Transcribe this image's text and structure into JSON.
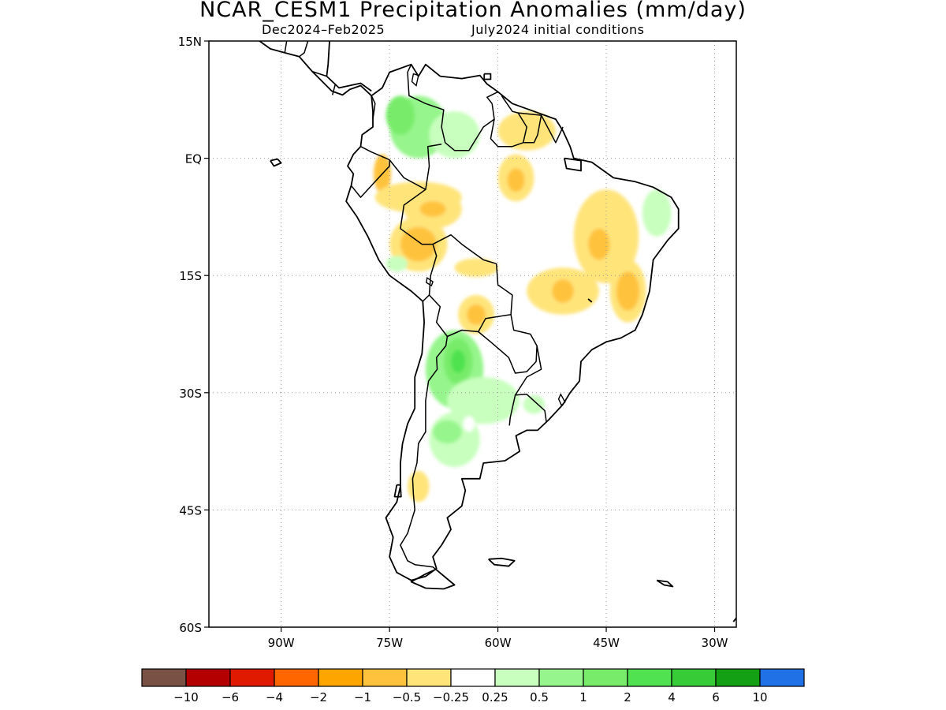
{
  "header": {
    "title": "NCAR_CESM1 Precipitation Anomalies (mm/day)",
    "subtitle_left": "Dec2024–Feb2025",
    "subtitle_right": "July2024 initial conditions"
  },
  "map": {
    "lon_range": [
      -100,
      -27
    ],
    "lat_range": [
      -60,
      15
    ],
    "lat_ticks": [
      {
        "value": 15,
        "label": "15N"
      },
      {
        "value": 0,
        "label": "EQ"
      },
      {
        "value": -15,
        "label": "15S"
      },
      {
        "value": -30,
        "label": "30S"
      },
      {
        "value": -45,
        "label": "45S"
      },
      {
        "value": -60,
        "label": "60S"
      }
    ],
    "lon_ticks": [
      {
        "value": -90,
        "label": "90W"
      },
      {
        "value": -75,
        "label": "75W"
      },
      {
        "value": -60,
        "label": "60W"
      },
      {
        "value": -45,
        "label": "45W"
      },
      {
        "value": -30,
        "label": "30W"
      }
    ],
    "grid": "dotted"
  },
  "colorbar": {
    "colors": [
      "#7a5145",
      "#b40000",
      "#e01a00",
      "#ff6600",
      "#ffa500",
      "#ffc23d",
      "#ffe47a",
      "#ffffff",
      "#c8ffbe",
      "#96f58c",
      "#78ec6a",
      "#50e250",
      "#37cc37",
      "#14a014",
      "#2171e6"
    ],
    "labels": [
      "−10",
      "−6",
      "−4",
      "−2",
      "−1",
      "−0.5",
      "−0.25",
      "0.25",
      "0.5",
      "1",
      "2",
      "4",
      "6",
      "10"
    ]
  },
  "anomalies": [
    {
      "lon": -71,
      "lat": 4,
      "rx": 4,
      "ry": 4,
      "color": "#96f58c"
    },
    {
      "lon": -73.5,
      "lat": 5.5,
      "rx": 2,
      "ry": 2.5,
      "color": "#78ec6a"
    },
    {
      "lon": -66,
      "lat": 3,
      "rx": 3.5,
      "ry": 3,
      "color": "#c8ffbe"
    },
    {
      "lon": -76,
      "lat": -2,
      "rx": 1.2,
      "ry": 2.5,
      "color": "#ffc23d"
    },
    {
      "lon": -71,
      "lat": -5,
      "rx": 6,
      "ry": 2,
      "color": "#ffe47a"
    },
    {
      "lon": -69,
      "lat": -6.5,
      "rx": 4,
      "ry": 2.5,
      "color": "#ffe47a"
    },
    {
      "lon": -69,
      "lat": -6.5,
      "rx": 1.8,
      "ry": 1,
      "color": "#ffc23d"
    },
    {
      "lon": -71,
      "lat": -11,
      "rx": 4,
      "ry": 3.5,
      "color": "#ffe47a"
    },
    {
      "lon": -71,
      "lat": -11,
      "rx": 2.5,
      "ry": 2.2,
      "color": "#ffc23d"
    },
    {
      "lon": -74,
      "lat": -13.5,
      "rx": 1.5,
      "ry": 1,
      "color": "#c8ffbe"
    },
    {
      "lon": -57.5,
      "lat": -2.5,
      "rx": 2.5,
      "ry": 3,
      "color": "#ffe47a"
    },
    {
      "lon": -57.5,
      "lat": -2.8,
      "rx": 1.2,
      "ry": 1.5,
      "color": "#ffc23d"
    },
    {
      "lon": -56,
      "lat": 3.5,
      "rx": 4,
      "ry": 2.5,
      "color": "#ffe47a"
    },
    {
      "lon": -45,
      "lat": -10,
      "rx": 4.5,
      "ry": 6,
      "color": "#ffe47a"
    },
    {
      "lon": -46,
      "lat": -11,
      "rx": 1.5,
      "ry": 2,
      "color": "#ffc23d"
    },
    {
      "lon": -51,
      "lat": -17,
      "rx": 5,
      "ry": 3,
      "color": "#ffe47a"
    },
    {
      "lon": -51,
      "lat": -17,
      "rx": 1.5,
      "ry": 1.5,
      "color": "#ffc23d"
    },
    {
      "lon": -42,
      "lat": -17,
      "rx": 2.5,
      "ry": 4,
      "color": "#ffe47a"
    },
    {
      "lon": -42,
      "lat": -17,
      "rx": 1.6,
      "ry": 2.5,
      "color": "#ffc23d"
    },
    {
      "lon": -38,
      "lat": -7,
      "rx": 2,
      "ry": 3,
      "color": "#c8ffbe"
    },
    {
      "lon": -63,
      "lat": -20,
      "rx": 2.5,
      "ry": 2.5,
      "color": "#ffe47a"
    },
    {
      "lon": -63,
      "lat": -20,
      "rx": 1.3,
      "ry": 1.3,
      "color": "#ffc23d"
    },
    {
      "lon": -63,
      "lat": -14,
      "rx": 3,
      "ry": 1.2,
      "color": "#ffe47a"
    },
    {
      "lon": -66,
      "lat": -27,
      "rx": 4,
      "ry": 5,
      "color": "#96f58c"
    },
    {
      "lon": -65.5,
      "lat": -26,
      "rx": 2,
      "ry": 3,
      "color": "#78ec6a"
    },
    {
      "lon": -65.5,
      "lat": -26,
      "rx": 1,
      "ry": 1.5,
      "color": "#50e250"
    },
    {
      "lon": -62,
      "lat": -31,
      "rx": 5,
      "ry": 3,
      "color": "#c8ffbe"
    },
    {
      "lon": -66,
      "lat": -36,
      "rx": 3.5,
      "ry": 3.5,
      "color": "#c8ffbe"
    },
    {
      "lon": -67,
      "lat": -35,
      "rx": 2,
      "ry": 1.5,
      "color": "#96f58c"
    },
    {
      "lon": -55,
      "lat": -31.5,
      "rx": 1.5,
      "ry": 1.2,
      "color": "#c8ffbe"
    },
    {
      "lon": -71,
      "lat": -42,
      "rx": 1.5,
      "ry": 2,
      "color": "#ffe47a"
    },
    {
      "lon": -64,
      "lat": -34,
      "rx": 0.8,
      "ry": 1,
      "color": "#ffffff"
    }
  ],
  "coastlines": {
    "south_america": [
      [
        -77.5,
        8
      ],
      [
        -76,
        9
      ],
      [
        -75,
        11
      ],
      [
        -72,
        12
      ],
      [
        -71,
        10.5
      ],
      [
        -70,
        12
      ],
      [
        -68,
        10.5
      ],
      [
        -65,
        10.2
      ],
      [
        -62.5,
        10.6
      ],
      [
        -61.5,
        9.5
      ],
      [
        -60,
        8.5
      ],
      [
        -58,
        7
      ],
      [
        -55,
        6
      ],
      [
        -52,
        5
      ],
      [
        -51,
        3.5
      ],
      [
        -50,
        1.5
      ],
      [
        -49.5,
        0
      ],
      [
        -47,
        -0.5
      ],
      [
        -44,
        -2.5
      ],
      [
        -41,
        -3
      ],
      [
        -38.5,
        -3.7
      ],
      [
        -36,
        -5
      ],
      [
        -35,
        -6.5
      ],
      [
        -35,
        -9
      ],
      [
        -36.5,
        -10.5
      ],
      [
        -38.5,
        -13
      ],
      [
        -39,
        -17
      ],
      [
        -40,
        -20
      ],
      [
        -41,
        -22
      ],
      [
        -43,
        -23
      ],
      [
        -45,
        -23.5
      ],
      [
        -47,
        -24.5
      ],
      [
        -48.5,
        -26
      ],
      [
        -48.7,
        -28.5
      ],
      [
        -50,
        -30
      ],
      [
        -51,
        -31.5
      ],
      [
        -53,
        -33.5
      ],
      [
        -54.5,
        -34.8
      ],
      [
        -56,
        -34.8
      ],
      [
        -57.5,
        -35.5
      ],
      [
        -57,
        -37.5
      ],
      [
        -59,
        -38.7
      ],
      [
        -62,
        -39
      ],
      [
        -62.5,
        -41
      ],
      [
        -65,
        -41
      ],
      [
        -64.5,
        -42.5
      ],
      [
        -65,
        -44.5
      ],
      [
        -67,
        -46
      ],
      [
        -66.5,
        -47.5
      ],
      [
        -67.8,
        -49.5
      ],
      [
        -69,
        -51
      ],
      [
        -68.5,
        -52.5
      ],
      [
        -70,
        -53.5
      ],
      [
        -72,
        -54
      ],
      [
        -74,
        -53
      ],
      [
        -75,
        -51
      ],
      [
        -74.5,
        -48.5
      ],
      [
        -75.5,
        -46
      ],
      [
        -74,
        -44
      ],
      [
        -73.5,
        -42
      ],
      [
        -73.5,
        -39
      ],
      [
        -73.2,
        -36.5
      ],
      [
        -72.5,
        -34
      ],
      [
        -71.5,
        -32
      ],
      [
        -71.5,
        -28
      ],
      [
        -70.5,
        -25
      ],
      [
        -70.2,
        -21
      ],
      [
        -70.4,
        -18.3
      ],
      [
        -72,
        -17
      ],
      [
        -75,
        -15
      ],
      [
        -76.5,
        -13
      ],
      [
        -78,
        -10
      ],
      [
        -79.5,
        -7.5
      ],
      [
        -81,
        -5.5
      ],
      [
        -80.3,
        -3.5
      ],
      [
        -80,
        -2
      ],
      [
        -80.8,
        -1
      ],
      [
        -80,
        0.5
      ],
      [
        -79,
        1.5
      ],
      [
        -78.8,
        3
      ],
      [
        -77.3,
        4
      ],
      [
        -77.3,
        6
      ],
      [
        -77.5,
        8
      ]
    ],
    "central_america": [
      [
        -77.5,
        8
      ],
      [
        -79,
        9.3
      ],
      [
        -80.5,
        8.8
      ],
      [
        -81.5,
        8.1
      ],
      [
        -83,
        8.6
      ],
      [
        -84.5,
        10
      ],
      [
        -85.7,
        11.1
      ],
      [
        -87.5,
        13
      ],
      [
        -89.5,
        13.5
      ],
      [
        -91.5,
        14
      ],
      [
        -93,
        15
      ],
      [
        -95,
        16
      ],
      [
        -96.5,
        15.7
      ]
    ],
    "central_america_north": [
      [
        -96.5,
        15.7
      ],
      [
        -94,
        18.2
      ],
      [
        -90.5,
        19
      ],
      [
        -90,
        21.2
      ],
      [
        -87,
        21.5
      ]
    ],
    "caribbean_coast": [
      [
        -87,
        21.5
      ],
      [
        -87.5,
        18.5
      ],
      [
        -88.3,
        16
      ],
      [
        -86,
        15.9
      ],
      [
        -83.3,
        15
      ],
      [
        -83.5,
        12
      ],
      [
        -83.7,
        10.5
      ],
      [
        -82,
        9
      ],
      [
        -79,
        9.6
      ],
      [
        -77.5,
        8.6
      ]
    ],
    "cuba_tip": [
      [
        -85,
        21.8
      ],
      [
        -82,
        22.6
      ],
      [
        -80,
        23.1
      ],
      [
        -77,
        21.8
      ],
      [
        -74.2,
        20.2
      ]
    ],
    "hispaniola": [
      [
        -74.4,
        18.5
      ],
      [
        -72,
        19.8
      ],
      [
        -70,
        19.8
      ],
      [
        -68.3,
        18.6
      ],
      [
        -70,
        18.2
      ],
      [
        -72,
        18.1
      ],
      [
        -74.4,
        18.5
      ]
    ],
    "puerto_rico": [
      [
        -67.2,
        18.5
      ],
      [
        -65.6,
        18.4
      ],
      [
        -65.8,
        18
      ],
      [
        -67.2,
        18
      ]
    ],
    "jamaica": [
      [
        -78.3,
        18.4
      ],
      [
        -76.3,
        18.1
      ],
      [
        -76.9,
        17.8
      ],
      [
        -78.3,
        18.1
      ],
      [
        -78.3,
        18.4
      ]
    ],
    "trinidad": [
      [
        -61.9,
        10.8
      ],
      [
        -61,
        10.8
      ],
      [
        -61,
        10.1
      ],
      [
        -61.9,
        10.1
      ],
      [
        -61.9,
        10.8
      ]
    ],
    "falklands": [
      [
        -61.3,
        -51.3
      ],
      [
        -59.5,
        -51.2
      ],
      [
        -57.7,
        -51.5
      ],
      [
        -58.5,
        -52.2
      ],
      [
        -60.5,
        -52
      ],
      [
        -61.3,
        -51.3
      ]
    ],
    "tierra_del_fuego": [
      [
        -68.6,
        -52.6
      ],
      [
        -66,
        -54.6
      ],
      [
        -67.5,
        -55.1
      ],
      [
        -70,
        -55
      ],
      [
        -72,
        -54.2
      ],
      [
        -70,
        -53.2
      ],
      [
        -68.6,
        -52.6
      ]
    ],
    "chiloe": [
      [
        -74,
        -41.8
      ],
      [
        -73.5,
        -41.8
      ],
      [
        -73.4,
        -43.3
      ],
      [
        -74.3,
        -43.3
      ],
      [
        -74,
        -41.8
      ]
    ],
    "marajo": [
      [
        -50.8,
        0
      ],
      [
        -48.5,
        -0.3
      ],
      [
        -48.5,
        -1.6
      ],
      [
        -50.5,
        -1.3
      ],
      [
        -50.8,
        0
      ]
    ],
    "galapagos": [
      [
        -91.5,
        -0.3
      ],
      [
        -90.5,
        -0.1
      ],
      [
        -90,
        -0.6
      ],
      [
        -91,
        -1
      ],
      [
        -91.5,
        -0.3
      ]
    ],
    "south_georgia": [
      [
        -38,
        -54
      ],
      [
        -36.5,
        -54.2
      ],
      [
        -35.8,
        -54.8
      ],
      [
        -37,
        -54.6
      ],
      [
        -38,
        -54
      ]
    ],
    "sandwich": [
      [
        -26.5,
        -56.5
      ],
      [
        -26.3,
        -57.5
      ],
      [
        -26.7,
        -58.5
      ],
      [
        -27.4,
        -59.3
      ]
    ],
    "abrolhos": [
      [
        -47.5,
        -18
      ],
      [
        -47,
        -18.4
      ]
    ]
  },
  "borders": [
    [
      [
        -77.5,
        8
      ],
      [
        -77,
        7
      ],
      [
        -77.3,
        5
      ]
    ],
    [
      [
        -72,
        12
      ],
      [
        -72.5,
        11
      ],
      [
        -72.3,
        8
      ],
      [
        -70,
        7
      ],
      [
        -67.5,
        6.2
      ],
      [
        -67.8,
        4
      ],
      [
        -67.3,
        2
      ],
      [
        -66,
        1
      ],
      [
        -64,
        1
      ],
      [
        -62,
        4
      ],
      [
        -60.5,
        5
      ],
      [
        -60.8,
        7
      ]
    ],
    [
      [
        -60.8,
        7
      ],
      [
        -61.5,
        7.8
      ],
      [
        -60,
        8.5
      ]
    ],
    [
      [
        -59.5,
        8
      ],
      [
        -58,
        6
      ],
      [
        -57.2,
        5.8
      ],
      [
        -56,
        4
      ],
      [
        -56.5,
        2
      ],
      [
        -58,
        1.5
      ],
      [
        -60,
        1.5
      ],
      [
        -61,
        2.5
      ],
      [
        -60.5,
        5
      ]
    ],
    [
      [
        -57.2,
        5.8
      ],
      [
        -54,
        5.5
      ],
      [
        -54.5,
        3
      ],
      [
        -55,
        2
      ],
      [
        -56.5,
        2
      ]
    ],
    [
      [
        -54,
        5.5
      ],
      [
        -52,
        2
      ],
      [
        -51,
        4
      ]
    ],
    [
      [
        -79,
        1.5
      ],
      [
        -77.5,
        0.8
      ],
      [
        -75.5,
        0
      ],
      [
        -75,
        -0.2
      ]
    ],
    [
      [
        -80.3,
        -3.5
      ],
      [
        -79,
        -5
      ],
      [
        -77,
        -3
      ],
      [
        -75,
        -1
      ],
      [
        -75,
        -0.2
      ]
    ],
    [
      [
        -75,
        -0.2
      ],
      [
        -73,
        -2.5
      ],
      [
        -70,
        -4
      ],
      [
        -69.5,
        -1
      ],
      [
        -69.7,
        1.5
      ],
      [
        -67.8,
        1.8
      ]
    ],
    [
      [
        -70,
        -4
      ],
      [
        -73,
        -6
      ],
      [
        -73.5,
        -9
      ],
      [
        -70.5,
        -11
      ],
      [
        -69,
        -11
      ]
    ],
    [
      [
        -69,
        -11
      ],
      [
        -68.5,
        -12.5
      ],
      [
        -69.3,
        -15
      ],
      [
        -69.5,
        -17.5
      ],
      [
        -70.4,
        -18.3
      ]
    ],
    [
      [
        -69.5,
        -17.5
      ],
      [
        -68,
        -19
      ],
      [
        -68.5,
        -21
      ],
      [
        -67,
        -22.8
      ],
      [
        -65,
        -22
      ],
      [
        -62.7,
        -22.2
      ],
      [
        -61.7,
        -20.5
      ],
      [
        -58.2,
        -20
      ],
      [
        -58,
        -17.5
      ],
      [
        -60,
        -16.2
      ],
      [
        -60.2,
        -13.5
      ],
      [
        -62,
        -13
      ],
      [
        -65,
        -11
      ],
      [
        -66.5,
        -9.8
      ],
      [
        -69,
        -11
      ]
    ],
    [
      [
        -67,
        -22.8
      ],
      [
        -67.2,
        -24
      ],
      [
        -68.5,
        -25.5
      ],
      [
        -68.4,
        -27
      ],
      [
        -69.6,
        -28.5
      ],
      [
        -70,
        -31
      ],
      [
        -70,
        -33
      ],
      [
        -70,
        -35
      ],
      [
        -71,
        -36.5
      ],
      [
        -71.2,
        -39
      ],
      [
        -71.8,
        -41
      ],
      [
        -71.7,
        -43
      ],
      [
        -71.5,
        -45
      ],
      [
        -72,
        -46.5
      ],
      [
        -72.5,
        -48
      ],
      [
        -73.5,
        -49.5
      ],
      [
        -72.5,
        -51.5
      ],
      [
        -71.5,
        -52
      ],
      [
        -69,
        -52.3
      ],
      [
        -68.6,
        -52.6
      ]
    ],
    [
      [
        -62.7,
        -22.2
      ],
      [
        -61,
        -23.5
      ],
      [
        -58.5,
        -25.5
      ],
      [
        -57.6,
        -27.5
      ],
      [
        -56,
        -27.3
      ],
      [
        -54.7,
        -26
      ],
      [
        -54.6,
        -24
      ],
      [
        -55.5,
        -22.5
      ],
      [
        -57.8,
        -22
      ],
      [
        -58.2,
        -20
      ]
    ],
    [
      [
        -54.6,
        -24
      ],
      [
        -54,
        -27
      ],
      [
        -56,
        -28
      ],
      [
        -57.6,
        -30.3
      ],
      [
        -56,
        -30.2
      ],
      [
        -53.5,
        -32.3
      ],
      [
        -53.3,
        -33.7
      ]
    ],
    [
      [
        -57.6,
        -30.3
      ],
      [
        -58.3,
        -33.2
      ],
      [
        -58.4,
        -34.2
      ]
    ],
    [
      [
        -86,
        15.9
      ],
      [
        -86.8,
        13.5
      ],
      [
        -87.5,
        13
      ]
    ],
    [
      [
        -83.7,
        10.5
      ],
      [
        -85.7,
        11.1
      ]
    ],
    [
      [
        -82.5,
        9.5
      ],
      [
        -82.9,
        8.1
      ]
    ],
    [
      [
        -88.3,
        16
      ],
      [
        -89.2,
        15.2
      ],
      [
        -89.5,
        13.5
      ]
    ],
    [
      [
        -88.3,
        16
      ],
      [
        -89.2,
        17.8
      ],
      [
        -91,
        17.8
      ],
      [
        -92.2,
        16
      ],
      [
        -92.2,
        15
      ]
    ],
    [
      [
        -89.2,
        17.8
      ],
      [
        -88.3,
        18.5
      ]
    ]
  ],
  "lakes": [
    [
      [
        -71.7,
        10.8
      ],
      [
        -71,
        10.6
      ],
      [
        -71.3,
        9.3
      ],
      [
        -71.9,
        9.8
      ],
      [
        -71.7,
        10.8
      ]
    ],
    [
      [
        -69.8,
        -15.3
      ],
      [
        -69,
        -15.8
      ],
      [
        -69.2,
        -16.3
      ],
      [
        -69.9,
        -15.9
      ],
      [
        -69.8,
        -15.3
      ]
    ],
    [
      [
        -51.3,
        -30.2
      ],
      [
        -50.7,
        -31.2
      ],
      [
        -51.2,
        -31.6
      ],
      [
        -51.6,
        -30.8
      ],
      [
        -51.3,
        -30.2
      ]
    ]
  ]
}
